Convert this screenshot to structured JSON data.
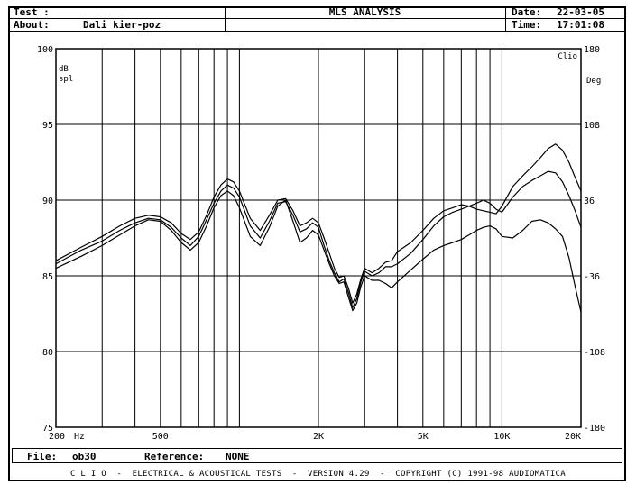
{
  "header": {
    "test_label": "Test :",
    "about_label": "About:",
    "about_value": "Dali kier-poz",
    "title": "MLS ANALYSIS",
    "date_label": "Date:",
    "date_value": "22-03-05",
    "time_label": "Time:",
    "time_value": "17:01:08"
  },
  "chart_data": {
    "type": "line",
    "xscale": "log",
    "xlim": [
      200,
      20000
    ],
    "ylim": [
      75,
      100
    ],
    "y2lim": [
      -180,
      180
    ],
    "ylabel_line1": "dB",
    "ylabel_line2": "spl",
    "y2label_top": "Clio",
    "y2label": "Deg",
    "x_unit_label": "Hz",
    "x_tick_labels": [
      {
        "value": 200,
        "label": "200"
      },
      {
        "value": 500,
        "label": "500"
      },
      {
        "value": 2000,
        "label": "2K"
      },
      {
        "value": 5000,
        "label": "5K"
      },
      {
        "value": 10000,
        "label": "10K"
      },
      {
        "value": 20000,
        "label": "20K"
      }
    ],
    "y_ticks": [
      "100",
      "95",
      "90",
      "85",
      "80",
      "75"
    ],
    "y2_ticks": [
      "180",
      "108",
      "36",
      "-36",
      "-108",
      "-180"
    ],
    "grid": true,
    "series": [
      {
        "x": [
          200,
          250,
          300,
          350,
          400,
          450,
          500,
          550,
          600,
          650,
          700,
          750,
          800,
          850,
          900,
          950,
          1000,
          1100,
          1200,
          1300,
          1400,
          1500,
          1600,
          1700,
          1800,
          1900,
          2000,
          2100,
          2200,
          2300,
          2400,
          2500,
          2600,
          2700,
          2800,
          2900,
          3000,
          3200,
          3400,
          3600,
          3800,
          4000,
          4500,
          5000,
          5500,
          6000,
          6500,
          7000,
          7500,
          8000,
          8500,
          9000,
          9500,
          10000,
          11000,
          12000,
          13000,
          14000,
          15000,
          16000,
          17000,
          18000,
          19000,
          20000
        ],
        "values": [
          86.0,
          86.9,
          87.6,
          88.3,
          88.8,
          89.0,
          88.9,
          88.5,
          87.8,
          87.4,
          87.9,
          89.0,
          90.2,
          91.0,
          91.4,
          91.2,
          90.6,
          88.8,
          88.0,
          89.0,
          90.0,
          90.1,
          89.3,
          88.3,
          88.5,
          88.8,
          88.5,
          87.5,
          86.5,
          85.5,
          84.9,
          85.0,
          84.2,
          83.2,
          83.8,
          84.8,
          85.5,
          85.2,
          85.5,
          85.9,
          86.0,
          86.6,
          87.2,
          88.0,
          88.8,
          89.3,
          89.5,
          89.7,
          89.6,
          89.4,
          89.3,
          89.2,
          89.1,
          89.6,
          90.9,
          91.6,
          92.2,
          92.8,
          93.4,
          93.7,
          93.3,
          92.5,
          91.5,
          90.6
        ]
      },
      {
        "x": [
          200,
          250,
          300,
          350,
          400,
          450,
          500,
          550,
          600,
          650,
          700,
          750,
          800,
          850,
          900,
          950,
          1000,
          1100,
          1200,
          1300,
          1400,
          1500,
          1600,
          1700,
          1800,
          1900,
          2000,
          2100,
          2200,
          2300,
          2400,
          2500,
          2600,
          2700,
          2800,
          2900,
          3000,
          3200,
          3400,
          3600,
          3800,
          4000,
          4500,
          5000,
          5500,
          6000,
          6500,
          7000,
          7500,
          8000,
          8500,
          9000,
          9500,
          10000,
          11000,
          12000,
          13000,
          14000,
          15000,
          16000,
          17000,
          18000,
          19000,
          20000
        ],
        "values": [
          85.8,
          86.7,
          87.3,
          88.0,
          88.5,
          88.8,
          88.7,
          88.2,
          87.5,
          87.0,
          87.6,
          88.7,
          89.8,
          90.6,
          91.0,
          90.8,
          90.2,
          88.3,
          87.5,
          88.6,
          89.8,
          89.9,
          89.0,
          87.9,
          88.1,
          88.5,
          88.2,
          87.0,
          86.0,
          85.2,
          84.6,
          84.8,
          83.9,
          82.9,
          83.5,
          84.6,
          85.3,
          85.0,
          85.2,
          85.6,
          85.6,
          85.8,
          86.5,
          87.4,
          88.3,
          88.9,
          89.2,
          89.4,
          89.6,
          89.8,
          90.0,
          89.8,
          89.4,
          89.2,
          90.2,
          90.9,
          91.3,
          91.6,
          91.9,
          91.8,
          91.2,
          90.3,
          89.3,
          88.2
        ]
      },
      {
        "x": [
          200,
          250,
          300,
          350,
          400,
          450,
          500,
          550,
          600,
          650,
          700,
          750,
          800,
          850,
          900,
          950,
          1000,
          1100,
          1200,
          1300,
          1400,
          1500,
          1600,
          1700,
          1800,
          1900,
          2000,
          2100,
          2200,
          2300,
          2400,
          2500,
          2600,
          2700,
          2800,
          2900,
          3000,
          3200,
          3400,
          3600,
          3800,
          4000,
          4500,
          5000,
          5500,
          6000,
          6500,
          7000,
          7500,
          8000,
          8500,
          9000,
          9500,
          10000,
          11000,
          12000,
          13000,
          14000,
          15000,
          16000,
          17000,
          18000,
          19000,
          20000
        ],
        "values": [
          85.5,
          86.3,
          87.0,
          87.7,
          88.3,
          88.7,
          88.6,
          88.0,
          87.2,
          86.7,
          87.2,
          88.3,
          89.5,
          90.3,
          90.6,
          90.3,
          89.5,
          87.6,
          87.0,
          88.2,
          89.6,
          90.0,
          88.6,
          87.2,
          87.5,
          88.0,
          87.7,
          86.7,
          85.8,
          85.0,
          84.5,
          84.6,
          83.6,
          82.7,
          83.2,
          84.3,
          85.0,
          84.7,
          84.7,
          84.5,
          84.2,
          84.6,
          85.4,
          86.1,
          86.7,
          87.0,
          87.2,
          87.4,
          87.7,
          88.0,
          88.2,
          88.3,
          88.1,
          87.6,
          87.5,
          88.0,
          88.6,
          88.7,
          88.5,
          88.1,
          87.6,
          86.2,
          84.3,
          82.6
        ]
      }
    ]
  },
  "footer": {
    "file_label": "File:",
    "file_value": "ob30",
    "reference_label": "Reference:",
    "reference_value": "NONE"
  },
  "credits": "C L I O  -  ELECTRICAL & ACOUSTICAL TESTS  -  VERSION 4.29  -  COPYRIGHT (C) 1991-98 AUDIOMATICA"
}
